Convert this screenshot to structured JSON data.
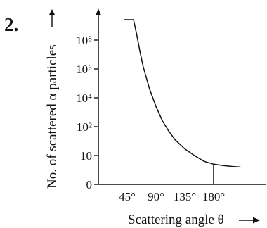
{
  "question_number": "2.",
  "chart_data": {
    "type": "line",
    "title": "",
    "xlabel": "Scattering angle θ",
    "ylabel": "No. of scattered α particles",
    "x_ticks": [
      {
        "value": 45,
        "label": "45°"
      },
      {
        "value": 90,
        "label": "90°"
      },
      {
        "value": 135,
        "label": "135°"
      },
      {
        "value": 180,
        "label": "180°"
      }
    ],
    "y_ticks": [
      {
        "value": 0,
        "label": "0"
      },
      {
        "value": 10,
        "label": "10"
      },
      {
        "value": 100,
        "label": "10²"
      },
      {
        "value": 10000,
        "label": "10⁴"
      },
      {
        "value": 1000000,
        "label": "10⁶"
      },
      {
        "value": 100000000,
        "label": "10⁸"
      }
    ],
    "xlim": [
      0,
      225
    ],
    "series": [
      {
        "x": [
          40,
          45,
          50,
          55,
          60,
          65,
          70,
          80,
          90,
          100,
          110,
          120,
          135,
          150,
          165,
          180,
          195,
          210,
          222
        ],
        "y": [
          1000000000,
          80000000,
          5000000,
          800000,
          150000,
          40000,
          12000,
          2000,
          500,
          160,
          70,
          35,
          17,
          10,
          8,
          7,
          6.5,
          6.2,
          6
        ]
      }
    ],
    "marker_line_x": 180,
    "grid": false,
    "legend": "none"
  }
}
